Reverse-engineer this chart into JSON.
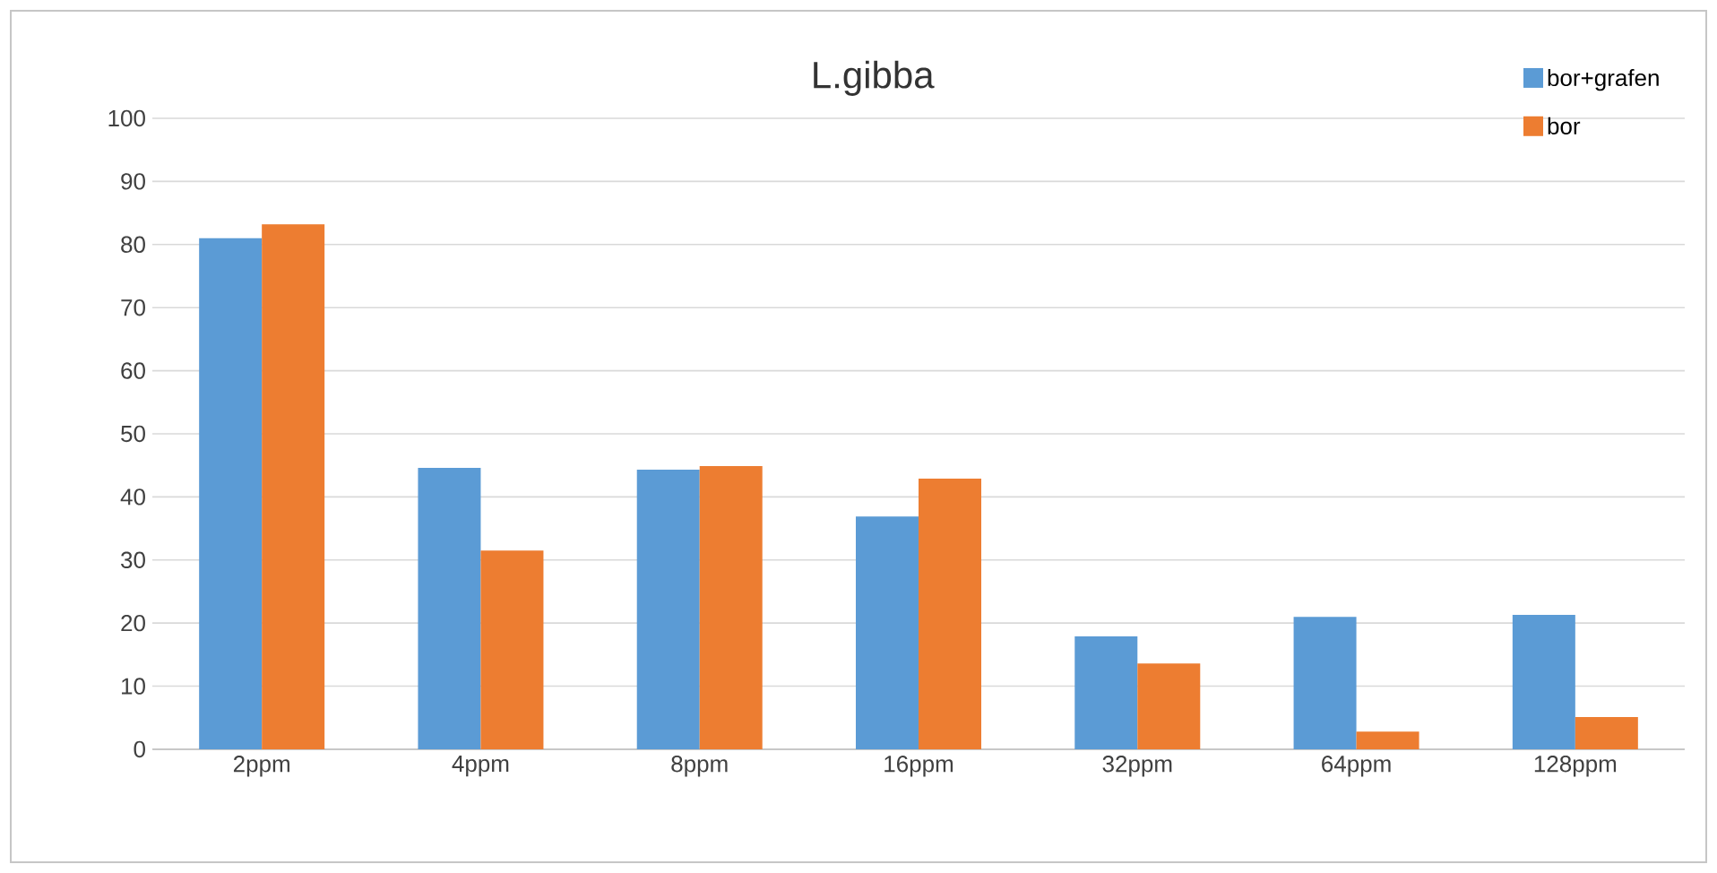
{
  "chart_data": {
    "type": "bar",
    "title": "L.gibba",
    "categories": [
      "2ppm",
      "4ppm",
      "8ppm",
      "16ppm",
      "32ppm",
      "64ppm",
      "128ppm"
    ],
    "series": [
      {
        "name": "bor+grafen",
        "color": "#5b9bd5",
        "values": [
          81,
          44.6,
          44.3,
          36.9,
          17.9,
          21,
          21.3
        ]
      },
      {
        "name": "bor",
        "color": "#ed7d31",
        "values": [
          83.2,
          31.5,
          44.9,
          42.9,
          13.6,
          2.8,
          5.1
        ]
      }
    ],
    "ylim": [
      0,
      100
    ],
    "yticks": [
      0,
      10,
      20,
      30,
      40,
      50,
      60,
      70,
      80,
      90,
      100
    ],
    "grid": "y",
    "legend": "top right"
  }
}
